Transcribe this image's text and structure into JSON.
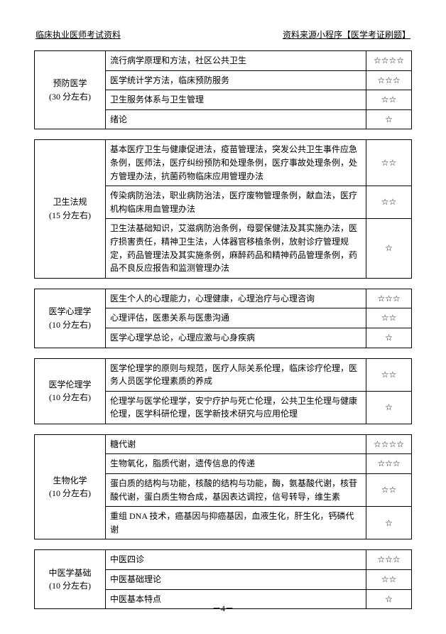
{
  "header": {
    "left": "临床执业医师考试资料",
    "right": "资料来源小程序【医学考证刷题】"
  },
  "sections": [
    {
      "category": [
        "预防医学",
        "(30 分左右)"
      ],
      "rows": [
        {
          "topic": "流行病学原理和方法，社区公共卫生",
          "stars": "☆☆☆☆"
        },
        {
          "topic": "医学统计学方法，临床预防服务",
          "stars": "☆☆☆"
        },
        {
          "topic": "卫生服务体系与卫生管理",
          "stars": "☆☆"
        },
        {
          "topic": "绪论",
          "stars": "☆"
        }
      ]
    },
    {
      "category": [
        "卫生法规",
        "(15 分左右)"
      ],
      "rows": [
        {
          "topic": "基本医疗卫生与健康促进法，疫苗管理法，突发公共卫生事件应急条例，医师法，医疗纠纷预防和处理条例，医疗事故处理条例，处方管理办法，抗菌药物临床应用管理办法",
          "stars": "☆☆"
        },
        {
          "topic": "传染病防治法，职业病防治法，医疗废物管理条例，献血法，医疗机构临床用血管理办法",
          "stars": "☆☆"
        },
        {
          "topic": "卫生法基础知识，艾滋病防治条例，母婴保健法及其实施办法，医疗损害责任，精神卫生法，人体器官移植条例，放射诊疗管理规定，药品管理法及其实施条例，麻醉药品和精神药品管理条例，药品不良反应报告和监测管理办法",
          "stars": "☆"
        }
      ]
    },
    {
      "category": [
        "医学心理学",
        "(10 分左右)"
      ],
      "rows": [
        {
          "topic": "医生个人的心理能力，心理健康，心理治疗与心理咨询",
          "stars": "☆☆☆"
        },
        {
          "topic": "心理评估，医患关系与医患沟通",
          "stars": "☆☆"
        },
        {
          "topic": "医学心理学总论，心理应激与心身疾病",
          "stars": "☆"
        }
      ]
    },
    {
      "category": [
        "医学伦理学",
        "(10 分左右)"
      ],
      "rows": [
        {
          "topic": "医学伦理学的原则与规范，医疗人际关系伦理，临床诊疗伦理，医务人员医学伦理素质的养成",
          "stars": "☆☆"
        },
        {
          "topic": "伦理学与医学伦理学，安宁疗护与死亡伦理，公共卫生伦理与健康伦理，医学科研伦理，医学新技术研究与应用伦理",
          "stars": "☆"
        }
      ]
    },
    {
      "category": [
        "生物化学",
        "(10 分左右)"
      ],
      "rows": [
        {
          "topic": "糖代谢",
          "stars": "☆☆☆☆"
        },
        {
          "topic": "生物氧化，脂质代谢，遗传信息的传递",
          "stars": "☆☆☆"
        },
        {
          "topic": "蛋白质的结构与功能，核酸的结构与功能，酶，氨基酸代谢，核苷酸代谢，蛋白质生物合成，基因表达调控，信号转导，维生素",
          "stars": "☆☆"
        },
        {
          "topic": "重组 DNA 技术，癌基因与抑癌基因，血液生化，肝生化，钙磷代谢",
          "stars": "☆"
        }
      ]
    },
    {
      "category": [
        "中医学基础",
        "(10 分左右)"
      ],
      "rows": [
        {
          "topic": "中医四诊",
          "stars": "☆☆☆"
        },
        {
          "topic": "中医基础理论",
          "stars": "☆☆"
        },
        {
          "topic": "中医基本特点",
          "stars": "☆"
        }
      ]
    }
  ],
  "pageNumber": "－4－"
}
